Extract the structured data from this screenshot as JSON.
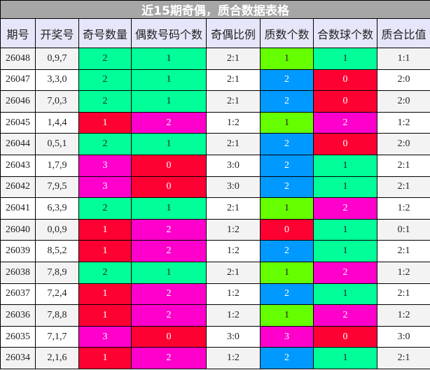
{
  "title": "近15期奇偶，质合数据表格",
  "headers": [
    "期号",
    "开奖号",
    "奇号数量",
    "偶数号码个数",
    "奇偶比例",
    "质数个数",
    "合数球个数",
    "质合比值"
  ],
  "colors": {
    "odd_count": {
      "1": "#ff0033",
      "2": "#00ff99",
      "3": "#ff00cc"
    },
    "even_count": {
      "0": "#ff0033",
      "1": "#00ff99",
      "2": "#ff00cc"
    },
    "prime_count": {
      "0": "#ff0033",
      "1": "#66ff00",
      "2": "#0099ff",
      "3": "#ff00cc"
    },
    "composite_count": {
      "0": "#ff0033",
      "1": "#00ff99",
      "2": "#ff00cc"
    },
    "light_text": [
      "#ff0033",
      "#ff00cc",
      "#0099ff"
    ]
  },
  "rows": [
    [
      "26048",
      "0,9,7",
      "2",
      "1",
      "2:1",
      "1",
      "1",
      "1:1"
    ],
    [
      "26047",
      "3,3,0",
      "2",
      "1",
      "2:1",
      "2",
      "0",
      "2:0"
    ],
    [
      "26046",
      "7,0,3",
      "2",
      "1",
      "2:1",
      "2",
      "0",
      "2:0"
    ],
    [
      "26045",
      "1,4,4",
      "1",
      "2",
      "1:2",
      "1",
      "2",
      "1:2"
    ],
    [
      "26044",
      "0,5,1",
      "2",
      "1",
      "2:1",
      "2",
      "0",
      "2:0"
    ],
    [
      "26043",
      "1,7,9",
      "3",
      "0",
      "3:0",
      "2",
      "1",
      "2:1"
    ],
    [
      "26042",
      "7,9,5",
      "3",
      "0",
      "3:0",
      "2",
      "1",
      "2:1"
    ],
    [
      "26041",
      "6,3,9",
      "2",
      "1",
      "2:1",
      "1",
      "2",
      "1:2"
    ],
    [
      "26040",
      "0,0,9",
      "1",
      "2",
      "1:2",
      "0",
      "1",
      "0:1"
    ],
    [
      "26039",
      "8,5,2",
      "1",
      "2",
      "1:2",
      "2",
      "1",
      "2:1"
    ],
    [
      "26038",
      "7,8,9",
      "2",
      "1",
      "2:1",
      "1",
      "2",
      "1:2"
    ],
    [
      "26037",
      "7,2,4",
      "1",
      "2",
      "1:2",
      "2",
      "1",
      "2:1"
    ],
    [
      "26036",
      "7,8,8",
      "1",
      "2",
      "1:2",
      "1",
      "2",
      "1:2"
    ],
    [
      "26035",
      "7,1,7",
      "3",
      "0",
      "3:0",
      "3",
      "0",
      "3:0"
    ],
    [
      "26034",
      "2,1,6",
      "1",
      "2",
      "1:2",
      "2",
      "1",
      "2:1"
    ]
  ]
}
